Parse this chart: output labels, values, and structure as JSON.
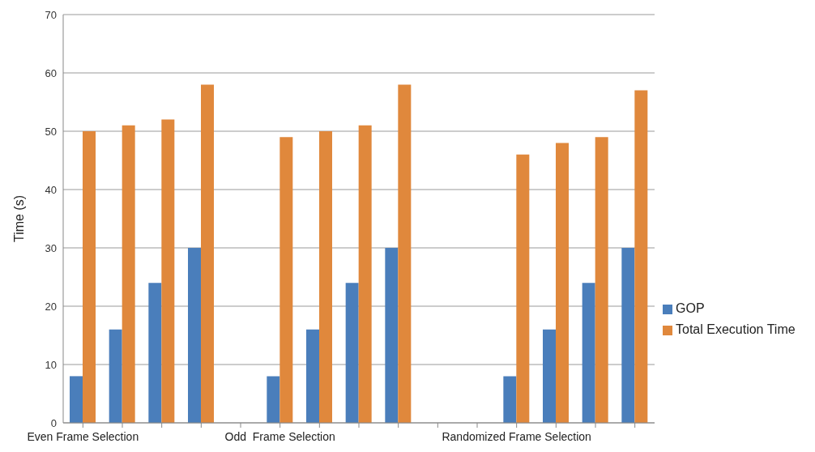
{
  "chart_data": {
    "type": "bar",
    "ylabel": "Time (s)",
    "categories": [
      "Even Frame Selection",
      null,
      null,
      null,
      null,
      "Odd  Frame Selection",
      null,
      null,
      null,
      null,
      null,
      "Randomized Frame Selection",
      null,
      null,
      null
    ],
    "series": [
      {
        "name": "GOP",
        "color": "#4a7ebb",
        "values": [
          8,
          16,
          24,
          30,
          null,
          8,
          16,
          24,
          30,
          null,
          null,
          8,
          16,
          24,
          30
        ]
      },
      {
        "name": "Total Execution Time",
        "color": "#e0883c",
        "values": [
          50,
          51,
          52,
          58,
          null,
          49,
          50,
          51,
          58,
          null,
          null,
          46,
          48,
          49,
          57
        ]
      }
    ],
    "ylim": [
      0,
      70
    ],
    "yticks": [
      0,
      10,
      20,
      30,
      40,
      50,
      60,
      70
    ],
    "grid": "y",
    "legend": "right"
  }
}
